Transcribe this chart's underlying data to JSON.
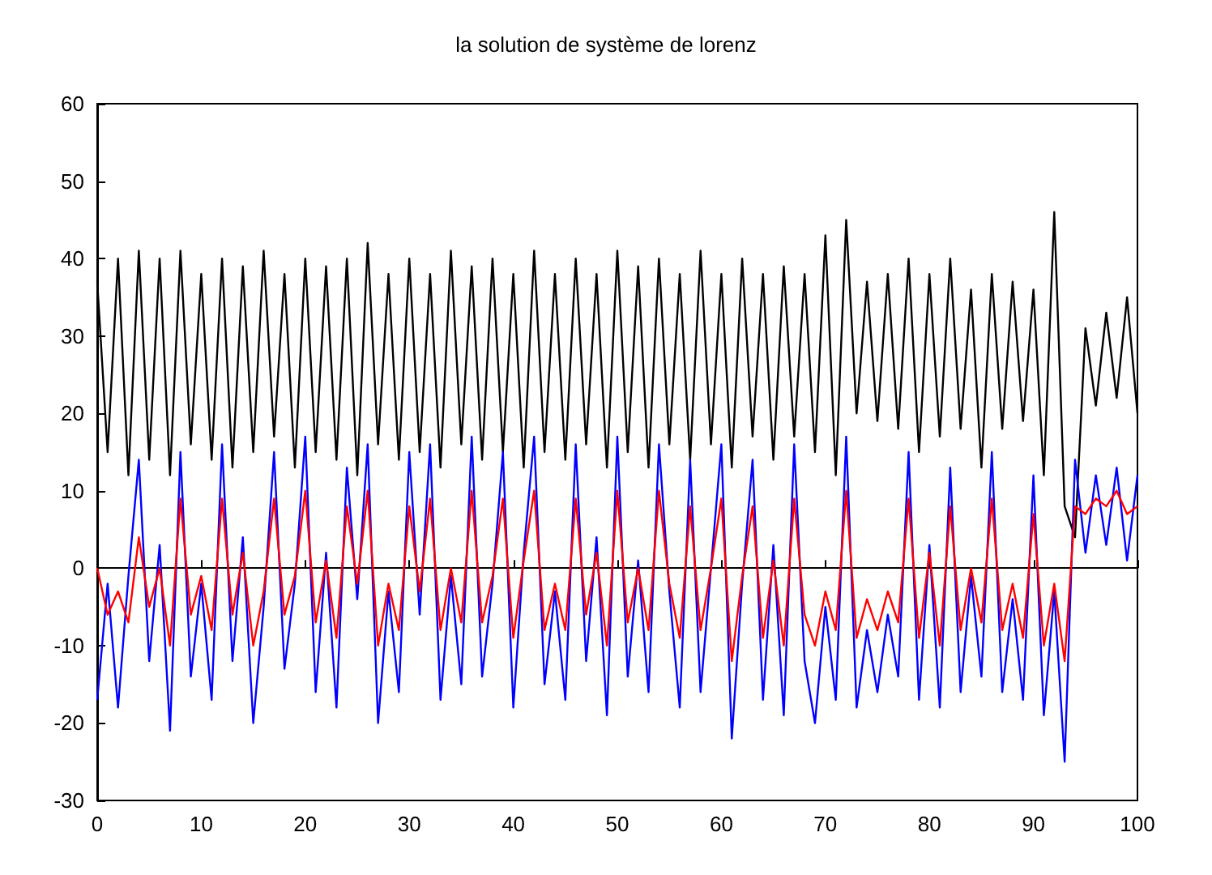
{
  "chart_data": {
    "type": "line",
    "title": "la solution de système de lorenz",
    "x": [
      0,
      1,
      2,
      3,
      4,
      5,
      6,
      7,
      8,
      9,
      10,
      11,
      12,
      13,
      14,
      15,
      16,
      17,
      18,
      19,
      20,
      21,
      22,
      23,
      24,
      25,
      26,
      27,
      28,
      29,
      30,
      31,
      32,
      33,
      34,
      35,
      36,
      37,
      38,
      39,
      40,
      41,
      42,
      43,
      44,
      45,
      46,
      47,
      48,
      49,
      50,
      51,
      52,
      53,
      54,
      55,
      56,
      57,
      58,
      59,
      60,
      61,
      62,
      63,
      64,
      65,
      66,
      67,
      68,
      69,
      70,
      71,
      72,
      73,
      74,
      75,
      76,
      77,
      78,
      79,
      80,
      81,
      82,
      83,
      84,
      85,
      86,
      87,
      88,
      89,
      90,
      91,
      92,
      93,
      94,
      95,
      96,
      97,
      98,
      99,
      100
    ],
    "series": [
      {
        "color": "#000000",
        "values": [
          37,
          15,
          40,
          12,
          41,
          14,
          40,
          12,
          41,
          16,
          38,
          14,
          40,
          13,
          39,
          15,
          41,
          17,
          38,
          13,
          40,
          15,
          39,
          14,
          40,
          12,
          42,
          16,
          38,
          14,
          40,
          15,
          38,
          13,
          41,
          16,
          39,
          14,
          40,
          15,
          38,
          13,
          41,
          15,
          38,
          14,
          40,
          16,
          38,
          13,
          41,
          15,
          39,
          13,
          40,
          16,
          38,
          14,
          41,
          16,
          38,
          13,
          40,
          17,
          38,
          14,
          39,
          17,
          38,
          15,
          43,
          12,
          45,
          20,
          37,
          19,
          38,
          18,
          40,
          15,
          38,
          17,
          40,
          18,
          36,
          13,
          38,
          18,
          37,
          19,
          36,
          12,
          46,
          8,
          4,
          31,
          21,
          33,
          22,
          35,
          20
        ]
      },
      {
        "color": "#0000ff",
        "values": [
          -17,
          -2,
          -18,
          -1,
          14,
          -12,
          3,
          -21,
          15,
          -14,
          -2,
          -17,
          16,
          -12,
          4,
          -20,
          -5,
          15,
          -13,
          -2,
          17,
          -16,
          2,
          -18,
          13,
          -4,
          16,
          -20,
          -3,
          -16,
          15,
          -6,
          16,
          -17,
          -1,
          -15,
          17,
          -14,
          -2,
          15,
          -18,
          2,
          17,
          -15,
          -3,
          -17,
          16,
          -12,
          4,
          -19,
          17,
          -14,
          1,
          -16,
          16,
          -3,
          -18,
          14,
          -16,
          0,
          16,
          -22,
          -2,
          14,
          -17,
          3,
          -19,
          16,
          -12,
          -20,
          -5,
          -17,
          17,
          -18,
          -8,
          -16,
          -6,
          -14,
          15,
          -17,
          3,
          -18,
          13,
          -16,
          -1,
          -14,
          15,
          -16,
          -4,
          -17,
          12,
          -19,
          -3,
          -25,
          14,
          2,
          12,
          3,
          13,
          1,
          12
        ]
      },
      {
        "color": "#ff0000",
        "values": [
          0,
          -6,
          -3,
          -7,
          4,
          -5,
          0,
          -10,
          9,
          -6,
          -1,
          -8,
          9,
          -6,
          2,
          -10,
          -3,
          9,
          -6,
          -1,
          10,
          -7,
          1,
          -9,
          8,
          -2,
          10,
          -10,
          -2,
          -8,
          8,
          -3,
          9,
          -8,
          0,
          -7,
          10,
          -7,
          -1,
          9,
          -9,
          1,
          10,
          -8,
          -2,
          -8,
          9,
          -6,
          2,
          -10,
          10,
          -7,
          0,
          -8,
          10,
          -2,
          -9,
          8,
          -8,
          0,
          9,
          -12,
          -1,
          8,
          -9,
          1,
          -10,
          9,
          -6,
          -10,
          -3,
          -8,
          10,
          -9,
          -4,
          -8,
          -3,
          -7,
          9,
          -9,
          2,
          -10,
          8,
          -8,
          0,
          -7,
          9,
          -8,
          -2,
          -9,
          7,
          -10,
          -2,
          -12,
          8,
          7,
          9,
          8,
          10,
          7,
          8
        ]
      }
    ],
    "xlim": [
      0,
      100
    ],
    "xticks": [
      0,
      10,
      20,
      30,
      40,
      50,
      60,
      70,
      80,
      90,
      100
    ],
    "ylim": [
      -30,
      60
    ],
    "yticks": [
      -30,
      -20,
      -10,
      0,
      10,
      20,
      30,
      40,
      50,
      60
    ]
  }
}
